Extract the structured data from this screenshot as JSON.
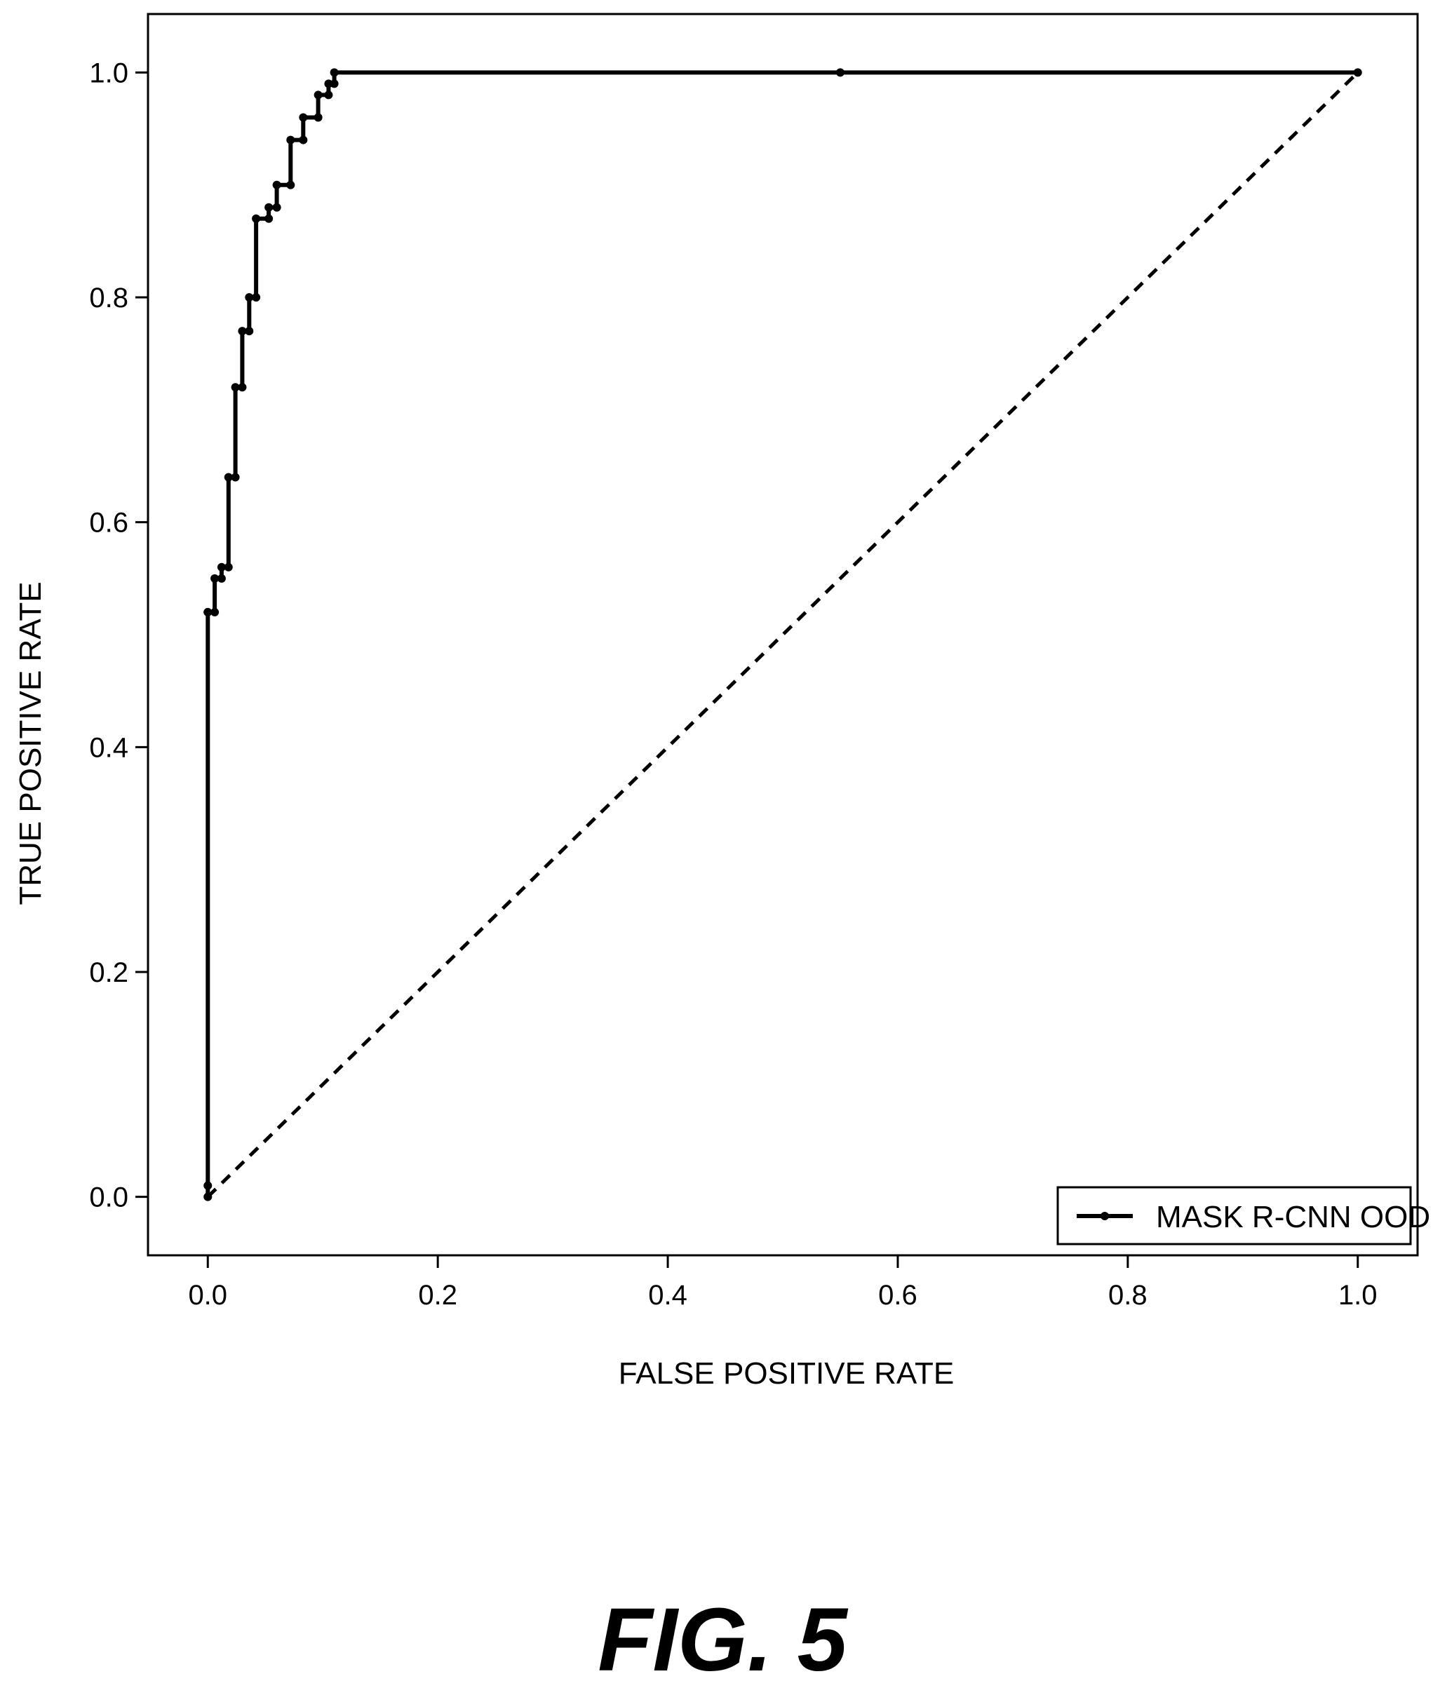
{
  "chart_data": {
    "type": "line",
    "xlabel": "FALSE POSITIVE RATE",
    "ylabel": "TRUE POSITIVE RATE",
    "xlim": [
      -0.052,
      1.052
    ],
    "ylim": [
      -0.052,
      1.052
    ],
    "x_ticks": [
      "0.0",
      "0.2",
      "0.4",
      "0.6",
      "0.8",
      "1.0"
    ],
    "y_ticks": [
      "0.0",
      "0.2",
      "0.4",
      "0.6",
      "0.8",
      "1.0"
    ],
    "x_tick_values": [
      0,
      0.2,
      0.4,
      0.6,
      0.8,
      1.0
    ],
    "y_tick_values": [
      0,
      0.2,
      0.4,
      0.6,
      0.8,
      1.0
    ],
    "grid": false,
    "legend_position": "bottom-right",
    "series": [
      {
        "name": "MASK R-CNN OOD",
        "color": "#000000",
        "markers": true,
        "x": [
          0,
          0,
          0,
          0,
          0.006,
          0.006,
          0.012,
          0.012,
          0.018,
          0.018,
          0.024,
          0.024,
          0.03,
          0.03,
          0.036,
          0.036,
          0.042,
          0.042,
          0.053,
          0.053,
          0.06,
          0.06,
          0.072,
          0.072,
          0.083,
          0.083,
          0.096,
          0.096,
          0.105,
          0.105,
          0.11,
          0.11,
          0.55,
          1.0
        ],
        "y": [
          0,
          0.01,
          0.52,
          0.52,
          0.52,
          0.55,
          0.55,
          0.56,
          0.56,
          0.64,
          0.64,
          0.72,
          0.72,
          0.77,
          0.77,
          0.8,
          0.8,
          0.87,
          0.87,
          0.88,
          0.88,
          0.9,
          0.9,
          0.94,
          0.94,
          0.96,
          0.96,
          0.98,
          0.98,
          0.99,
          0.99,
          1.0,
          1.0,
          1.0
        ]
      },
      {
        "name": "",
        "color": "#000000",
        "dashed": true,
        "x": [
          0,
          1
        ],
        "y": [
          0,
          1
        ]
      }
    ]
  },
  "caption": "FIG. 5"
}
